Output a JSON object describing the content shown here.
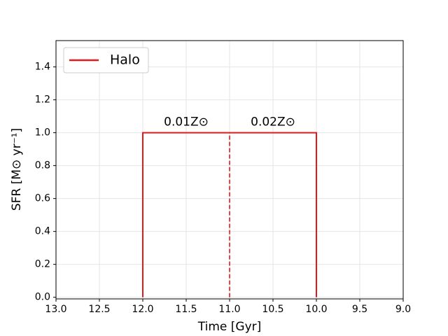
{
  "chart_data": {
    "type": "line",
    "xlabel": "Time [Gyr]",
    "ylabel": "SFR [M⊙ yr⁻¹]",
    "x": [
      12,
      12,
      10,
      10
    ],
    "series": [
      {
        "name": "Halo",
        "color": "#e31a1c",
        "values": [
          0,
          1,
          1,
          0
        ]
      }
    ],
    "vlines": [
      {
        "x": 11,
        "ymax": 1,
        "color": "#e31a1c",
        "style": "dashed"
      }
    ],
    "annotations": [
      "0.01Z⊙",
      "0.02Z⊙"
    ],
    "xlim": [
      13,
      9
    ],
    "xticks": [
      {
        "value": 13,
        "label": "13.0"
      },
      12.5,
      {
        "value": 12,
        "label": "12.0"
      },
      11.5,
      {
        "value": 11,
        "label": "11.0"
      },
      10.5,
      {
        "value": 10,
        "label": "10.0"
      },
      9.5,
      {
        "value": 9,
        "label": "9.0"
      }
    ],
    "ylim": [
      -0.01,
      1.56
    ],
    "yticks": [
      {
        "value": 0,
        "label": "0.0"
      },
      0.2,
      0.4,
      0.6,
      0.8,
      {
        "value": 1,
        "label": "1.0"
      },
      1.2,
      1.4
    ],
    "grid": true,
    "legend": "upper-left"
  }
}
